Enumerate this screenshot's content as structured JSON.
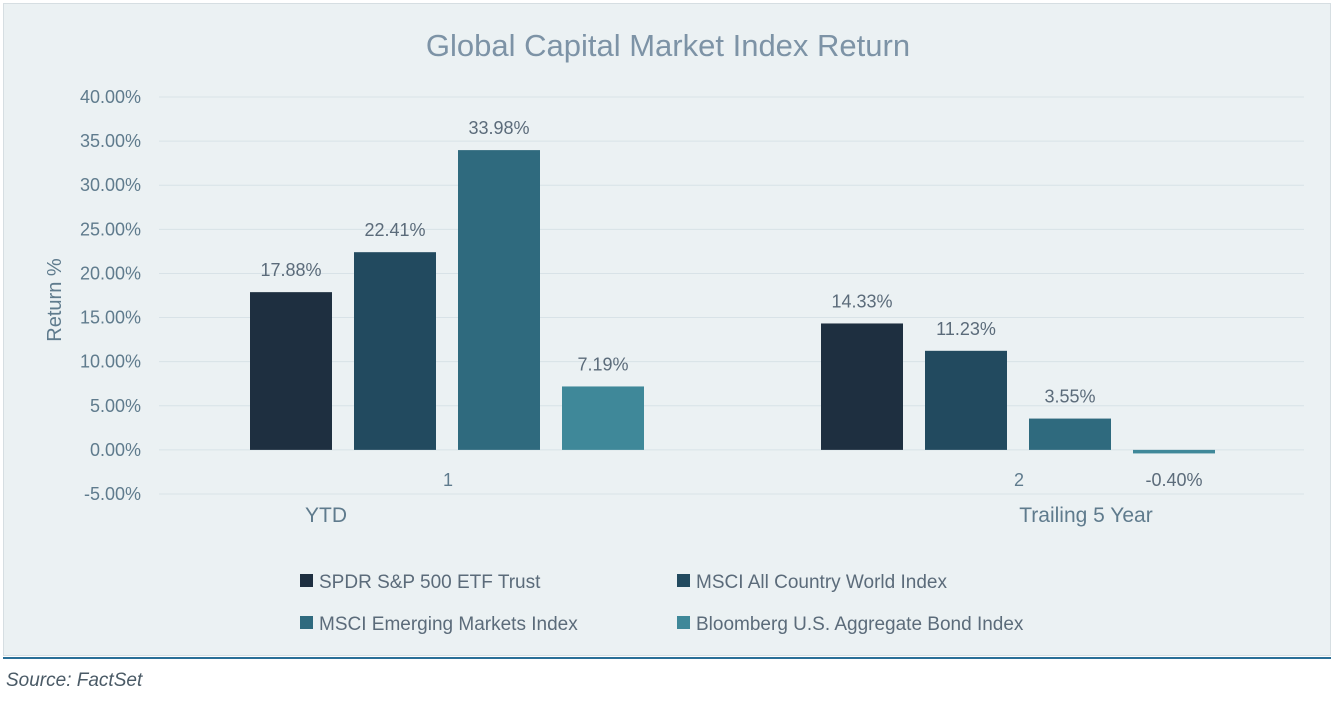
{
  "chart_data": {
    "type": "bar",
    "title": "Global Capital Market Index Return",
    "ylabel": "Return %",
    "xlabel": "",
    "ylim": [
      -5,
      40
    ],
    "yticks": [
      "40.00%",
      "35.00%",
      "30.00%",
      "25.00%",
      "20.00%",
      "15.00%",
      "10.00%",
      "5.00%",
      "0.00%",
      "-5.00%"
    ],
    "ytick_values": [
      40,
      35,
      30,
      25,
      20,
      15,
      10,
      5,
      0,
      -5
    ],
    "grid": true,
    "legend_position": "bottom",
    "categories": [
      "YTD",
      "Trailing 5 Year"
    ],
    "category_index_labels": [
      "1",
      "2"
    ],
    "series": [
      {
        "name": "SPDR S&P 500 ETF Trust",
        "color": "#1e2f40",
        "values": [
          17.88,
          14.33
        ],
        "labels": [
          "17.88%",
          "14.33%"
        ]
      },
      {
        "name": "MSCI All Country World Index",
        "color": "#224a5f",
        "values": [
          22.41,
          11.23
        ],
        "labels": [
          "22.41%",
          "11.23%"
        ]
      },
      {
        "name": "MSCI Emerging Markets Index",
        "color": "#2f6a7e",
        "values": [
          33.98,
          3.55
        ],
        "labels": [
          "33.98%",
          "3.55%"
        ]
      },
      {
        "name": "Bloomberg U.S. Aggregate Bond Index",
        "color": "#3f8899",
        "values": [
          7.19,
          -0.4
        ],
        "labels": [
          "7.19%",
          "-0.40%"
        ]
      }
    ]
  },
  "footer": {
    "source": "Source: FactSet"
  }
}
